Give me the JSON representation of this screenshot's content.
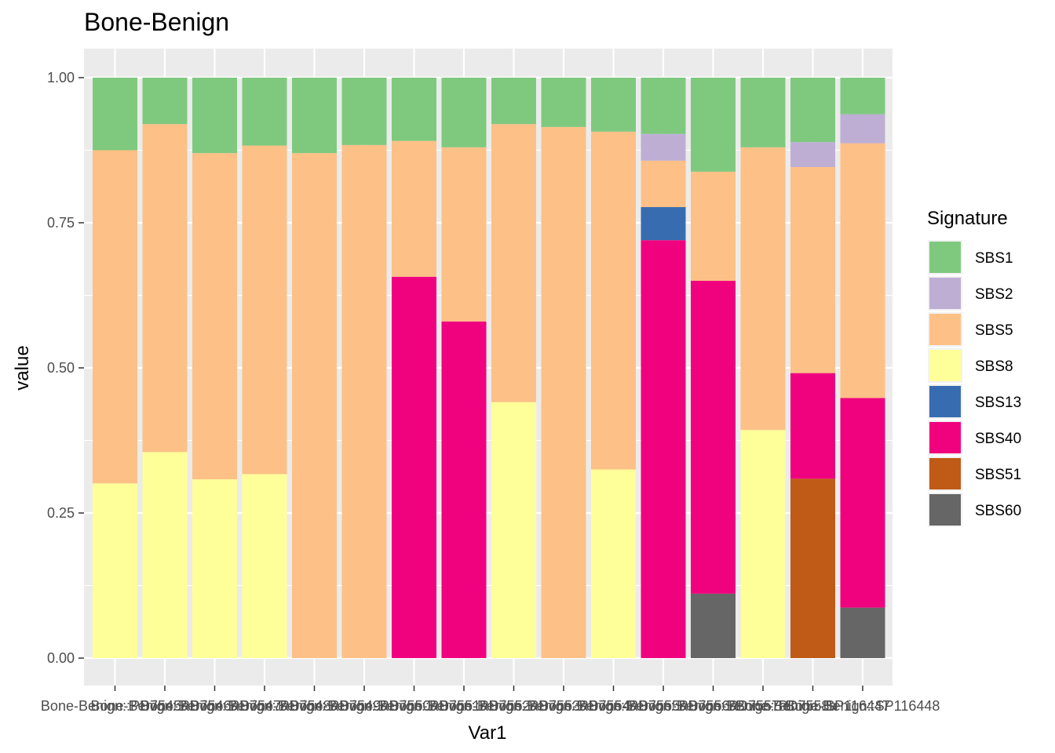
{
  "chart_data": {
    "type": "bar",
    "stacked": true,
    "title": "Bone-Benign",
    "xlabel": "Var1",
    "ylabel": "value",
    "ylim": [
      0,
      1.05
    ],
    "yticks": [
      "0.00",
      "0.25",
      "0.50",
      "0.75",
      "1.00"
    ],
    "ytick_values": [
      0,
      0.25,
      0.5,
      0.75,
      1.0
    ],
    "grid": true,
    "legend_title": "Signature",
    "legend_position": "right",
    "stack_order_bottom_to_top": [
      "SBS60",
      "SBS51",
      "SBS40",
      "SBS13",
      "SBS8",
      "SBS5",
      "SBS2",
      "SBS1"
    ],
    "categories": [
      "Bone-Benign::PD7545a",
      "Bone-Benign::PD7546a",
      "Bone-Benign::PD7547a",
      "Bone-Benign::PD7548a",
      "Bone-Benign::PD7549a",
      "Bone-Benign::PD7550a",
      "Bone-Benign::PD7551a",
      "Bone-Benign::PD7552a",
      "Bone-Benign::PD7553a",
      "Bone-Benign::PD7554a",
      "Bone-Benign::PD7555a",
      "Bone-Benign::PD7556a",
      "Bone-Benign::PD7557a",
      "Bone-Benign::PD7558a",
      "Bone-Benign::SP116447",
      "Bone-Benign::SP116448"
    ],
    "series": [
      {
        "name": "SBS1",
        "color": "#7FC97F",
        "values": [
          0.125,
          0.08,
          0.13,
          0.117,
          0.13,
          0.116,
          0.109,
          0.12,
          0.08,
          0.085,
          0.093,
          0.097,
          0.162,
          0.12,
          0.111,
          0.063
        ]
      },
      {
        "name": "SBS2",
        "color": "#BEAED4",
        "values": [
          0,
          0,
          0,
          0,
          0,
          0,
          0,
          0,
          0,
          0,
          0,
          0.046,
          0,
          0,
          0.043,
          0.05
        ]
      },
      {
        "name": "SBS5",
        "color": "#FDC086",
        "values": [
          0.574,
          0.565,
          0.562,
          0.566,
          0.87,
          0.884,
          0.234,
          0.3,
          0.479,
          0.915,
          0.582,
          0.08,
          0.188,
          0.487,
          0.355,
          0.439
        ]
      },
      {
        "name": "SBS8",
        "color": "#FFFF99",
        "values": [
          0.301,
          0.355,
          0.308,
          0.317,
          0,
          0,
          0,
          0,
          0.441,
          0,
          0.325,
          0,
          0,
          0.393,
          0,
          0
        ]
      },
      {
        "name": "SBS13",
        "color": "#386CB0",
        "values": [
          0,
          0,
          0,
          0,
          0,
          0,
          0,
          0,
          0,
          0,
          0,
          0.057,
          0,
          0,
          0,
          0
        ]
      },
      {
        "name": "SBS40",
        "color": "#F0027F",
        "values": [
          0,
          0,
          0,
          0,
          0,
          0,
          0.657,
          0.58,
          0,
          0,
          0,
          0.72,
          0.539,
          0,
          0.182,
          0.361
        ]
      },
      {
        "name": "SBS51",
        "color": "#BF5B17",
        "values": [
          0,
          0,
          0,
          0,
          0,
          0,
          0,
          0,
          0,
          0,
          0,
          0,
          0,
          0,
          0.309,
          0
        ]
      },
      {
        "name": "SBS60",
        "color": "#666666",
        "values": [
          0,
          0,
          0,
          0,
          0,
          0,
          0,
          0,
          0,
          0,
          0,
          0,
          0.111,
          0,
          0,
          0.087
        ]
      }
    ]
  }
}
